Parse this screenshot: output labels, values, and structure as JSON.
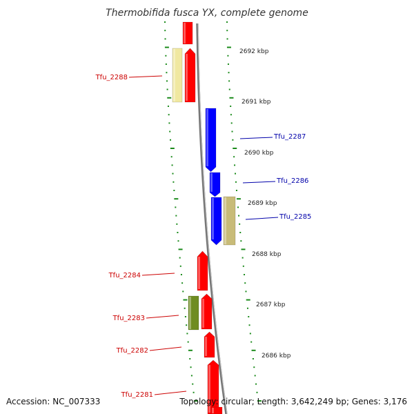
{
  "title": "Thermobifida fusca YX, complete genome",
  "footer": {
    "accession": "Accession: NC_007333",
    "topology": "Topology: circular; Length: 3,642,249 bp; Genes: 3,176"
  },
  "colors": {
    "backbone": "#777777",
    "ticks": "#1a8a1a",
    "reverse_gene": "#ff0000",
    "forward_gene": "#0000ff",
    "label_reverse": "#cc0000",
    "label_forward": "#0000aa",
    "pale_yellow": "#f0e8a0",
    "khaki": "#c8bb78",
    "olive": "#6f8c22"
  },
  "scale": {
    "unit": "kbp",
    "labels": [
      "2692 kbp",
      "2691 kbp",
      "2690 kbp",
      "2689 kbp",
      "2688 kbp",
      "2687 kbp",
      "2686 kbp"
    ]
  },
  "genes": [
    {
      "label": "",
      "strand": "reverse",
      "color": "red"
    },
    {
      "label": "",
      "strand": "reverse",
      "color": "red"
    },
    {
      "label": "Tfu_2288",
      "strand": "reverse",
      "color": "pale-yellow"
    },
    {
      "label": "Tfu_2287",
      "strand": "forward",
      "color": "blue"
    },
    {
      "label": "Tfu_2286",
      "strand": "forward",
      "color": "blue"
    },
    {
      "label": "",
      "strand": "forward",
      "color": "blue"
    },
    {
      "label": "Tfu_2285",
      "strand": "forward",
      "color": "khaki"
    },
    {
      "label": "Tfu_2284",
      "strand": "reverse",
      "color": "red"
    },
    {
      "label": "",
      "strand": "reverse",
      "color": "red"
    },
    {
      "label": "Tfu_2283",
      "strand": "reverse",
      "color": "olive"
    },
    {
      "label": "Tfu_2282",
      "strand": "reverse",
      "color": "red"
    },
    {
      "label": "",
      "strand": "reverse",
      "color": "red"
    },
    {
      "label": "Tfu_2281",
      "strand": "reverse",
      "color": "red"
    }
  ]
}
